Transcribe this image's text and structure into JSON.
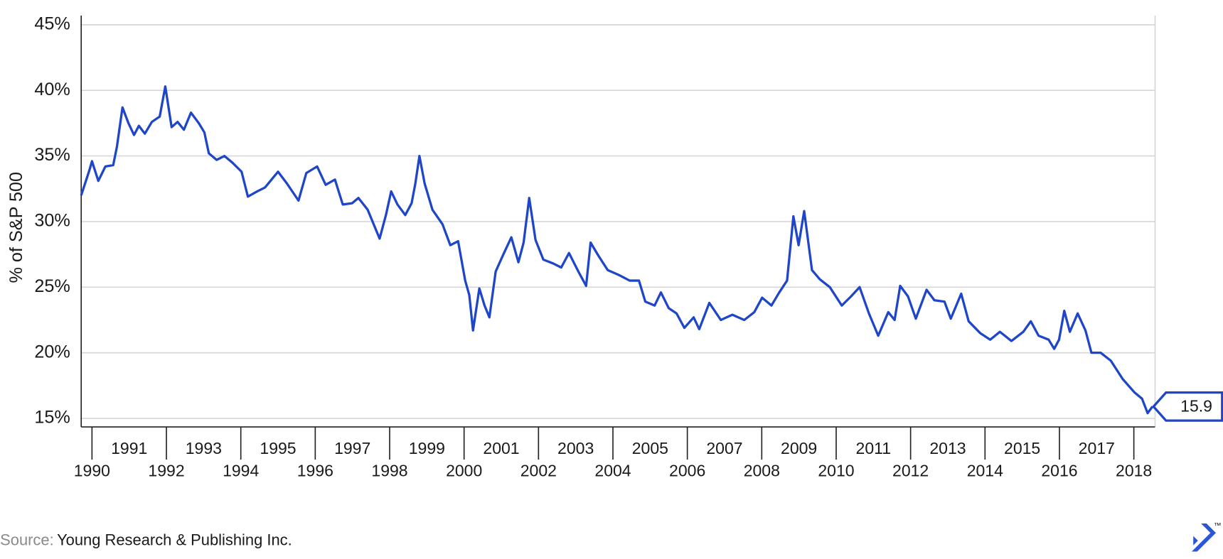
{
  "chart_data": {
    "type": "line",
    "y_label": "% of S&P 500",
    "color": "#1f45c9",
    "grid": true,
    "x": [
      1989.71,
      1989.94,
      1990.0,
      1990.17,
      1990.36,
      1990.57,
      1990.67,
      1990.82,
      1990.98,
      1991.13,
      1991.26,
      1991.42,
      1991.61,
      1991.82,
      1991.97,
      1992.14,
      1992.3,
      1992.47,
      1992.66,
      1992.87,
      1993.02,
      1993.14,
      1993.35,
      1993.56,
      1993.77,
      1994.02,
      1994.19,
      1994.44,
      1994.65,
      1995.0,
      1995.24,
      1995.55,
      1995.76,
      1996.05,
      1996.28,
      1996.53,
      1996.74,
      1996.99,
      1997.16,
      1997.41,
      1997.73,
      1997.9,
      1998.04,
      1998.21,
      1998.42,
      1998.59,
      1998.69,
      1998.8,
      1998.94,
      1999.15,
      1999.42,
      1999.63,
      1999.84,
      2000.03,
      2000.14,
      2000.24,
      2000.41,
      2000.55,
      2000.68,
      2000.85,
      2001.04,
      2001.27,
      2001.46,
      2001.6,
      2001.75,
      2001.92,
      2002.13,
      2002.4,
      2002.61,
      2002.82,
      2003.07,
      2003.28,
      2003.4,
      2003.61,
      2003.86,
      2004.18,
      2004.45,
      2004.7,
      2004.87,
      2005.12,
      2005.29,
      2005.5,
      2005.71,
      2005.92,
      2006.17,
      2006.32,
      2006.59,
      2006.9,
      2007.21,
      2007.53,
      2007.8,
      2008.01,
      2008.26,
      2008.47,
      2008.68,
      2008.85,
      2008.99,
      2009.14,
      2009.35,
      2009.56,
      2009.83,
      2010.15,
      2010.4,
      2010.63,
      2010.88,
      2011.13,
      2011.4,
      2011.57,
      2011.72,
      2011.93,
      2012.14,
      2012.43,
      2012.64,
      2012.91,
      2013.08,
      2013.36,
      2013.56,
      2013.87,
      2014.14,
      2014.4,
      2014.71,
      2015.03,
      2015.23,
      2015.44,
      2015.71,
      2015.86,
      2015.99,
      2016.13,
      2016.28,
      2016.49,
      2016.7,
      2016.86,
      2017.11,
      2017.38,
      2017.7,
      2018.01,
      2018.22,
      2018.37,
      2018.5
    ],
    "values": [
      32.0,
      34.0,
      34.6,
      33.1,
      34.2,
      34.3,
      35.7,
      38.7,
      37.5,
      36.6,
      37.3,
      36.7,
      37.6,
      38.0,
      40.3,
      37.2,
      37.6,
      37.0,
      38.3,
      37.5,
      36.8,
      35.2,
      34.7,
      35.0,
      34.5,
      33.8,
      31.9,
      32.3,
      32.6,
      33.8,
      32.9,
      31.6,
      33.7,
      34.2,
      32.8,
      33.2,
      31.3,
      31.4,
      31.8,
      30.9,
      28.7,
      30.5,
      32.3,
      31.3,
      30.5,
      31.4,
      32.9,
      35.0,
      32.9,
      30.9,
      29.8,
      28.2,
      28.5,
      25.5,
      24.4,
      21.7,
      24.9,
      23.6,
      22.7,
      26.2,
      27.4,
      28.8,
      26.9,
      28.4,
      31.8,
      28.6,
      27.1,
      26.8,
      26.5,
      27.6,
      26.2,
      25.1,
      28.4,
      27.4,
      26.3,
      25.9,
      25.5,
      25.5,
      23.9,
      23.6,
      24.6,
      23.4,
      23.0,
      21.9,
      22.7,
      21.8,
      23.8,
      22.5,
      22.9,
      22.5,
      23.1,
      24.2,
      23.6,
      24.6,
      25.5,
      30.4,
      28.2,
      30.8,
      26.3,
      25.6,
      25.0,
      23.6,
      24.3,
      25.0,
      23.0,
      21.3,
      23.1,
      22.5,
      25.1,
      24.3,
      22.6,
      24.8,
      24.0,
      23.9,
      22.6,
      24.5,
      22.4,
      21.5,
      21.0,
      21.6,
      20.9,
      21.6,
      22.4,
      21.3,
      21.0,
      20.3,
      21.0,
      23.2,
      21.6,
      23.0,
      21.7,
      20.0,
      20.0,
      19.4,
      18.0,
      17.0,
      16.5,
      15.4,
      15.9
    ],
    "xlim": [
      1989.71,
      2018.57
    ],
    "xticks": [
      1990,
      1991,
      1992,
      1993,
      1994,
      1995,
      1996,
      1997,
      1998,
      1999,
      2000,
      2001,
      2002,
      2003,
      2004,
      2005,
      2006,
      2007,
      2008,
      2009,
      2010,
      2011,
      2012,
      2013,
      2014,
      2015,
      2016,
      2017,
      2018
    ],
    "ylim": [
      14.35,
      45.7
    ],
    "yticks": [
      {
        "value": 15,
        "label": "15%"
      },
      {
        "value": 20,
        "label": "20%"
      },
      {
        "value": 25,
        "label": "25%"
      },
      {
        "value": 30,
        "label": "30%"
      },
      {
        "value": 35,
        "label": "35%"
      },
      {
        "value": 40,
        "label": "40%"
      },
      {
        "value": 45,
        "label": "45%"
      }
    ],
    "source_label": "Source:",
    "source": "Young Research & Publishing Inc.",
    "logo_text": "™"
  }
}
